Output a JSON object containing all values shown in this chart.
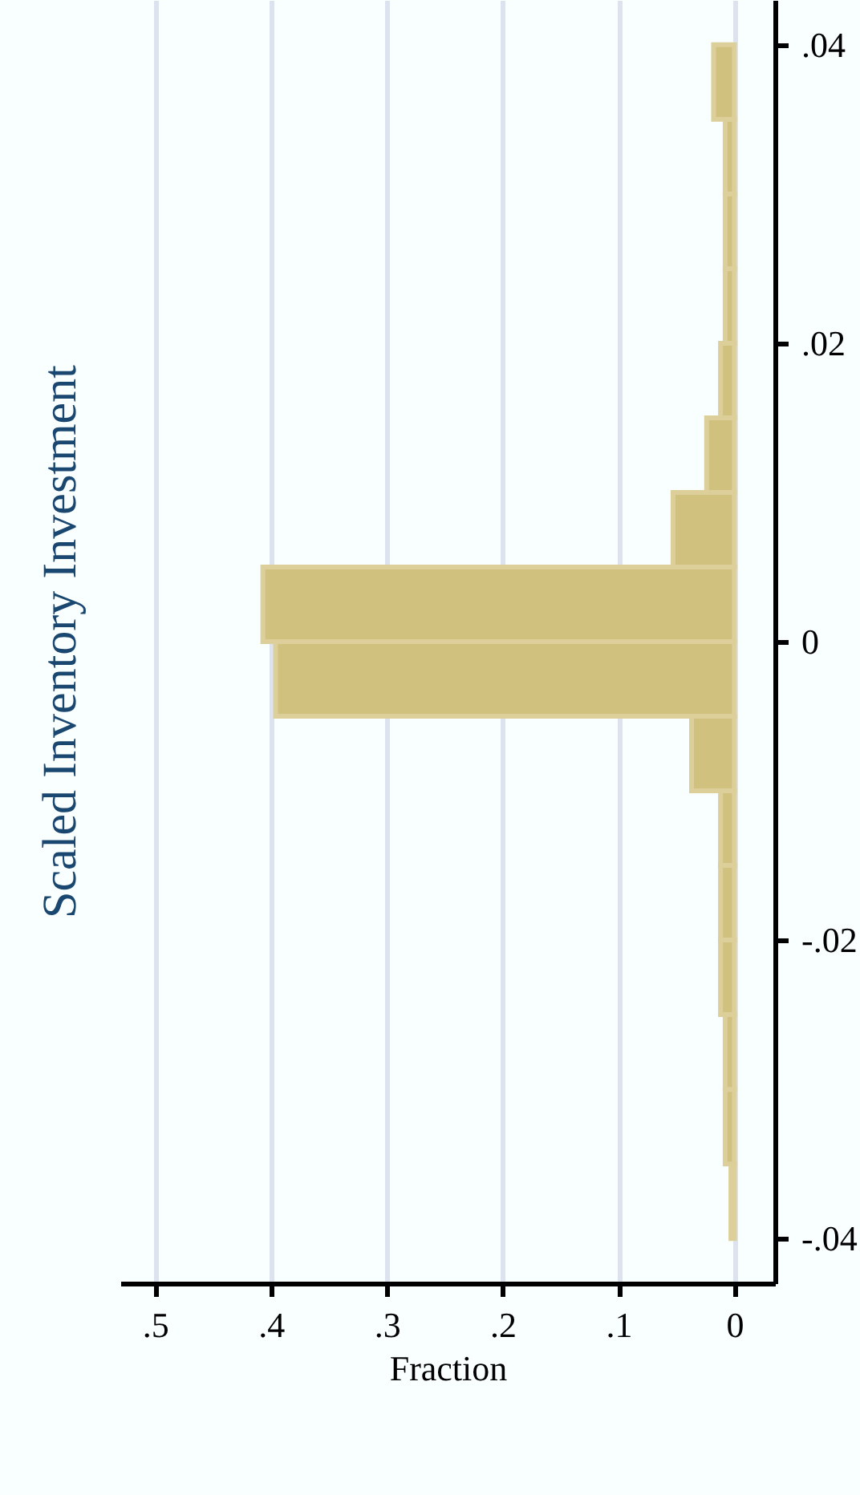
{
  "chart_data": {
    "type": "histogram",
    "title": "Scaled Inventory Investment",
    "xlabel": "Fraction",
    "orientation": "horizontal",
    "bins": [
      -0.04,
      -0.035,
      -0.03,
      -0.025,
      -0.02,
      -0.015,
      -0.01,
      -0.005,
      0,
      0.005,
      0.01,
      0.015,
      0.02,
      0.025,
      0.03,
      0.035,
      0.04
    ],
    "values": [
      0.003,
      0.008,
      0.008,
      0.012,
      0.012,
      0.012,
      0.037,
      0.396,
      0.407,
      0.053,
      0.024,
      0.012,
      0.008,
      0.008,
      0.008,
      0.018
    ],
    "color": "#d1c17e",
    "xlim": [
      0.53,
      -0.035
    ],
    "xticks": [
      0,
      {
        "value": 0.1,
        "label": ".1"
      },
      {
        "value": 0.2,
        "label": ".2"
      },
      {
        "value": 0.3,
        "label": ".3"
      },
      {
        "value": 0.4,
        "label": ".4"
      },
      {
        "value": 0.5,
        "label": ".5"
      }
    ],
    "ylim": [
      -0.043,
      0.043
    ],
    "yticks": [
      {
        "value": -0.04,
        "label": "-.04"
      },
      {
        "value": -0.02,
        "label": "-.02"
      },
      0,
      {
        "value": 0.02,
        "label": ".02"
      },
      {
        "value": 0.04,
        "label": ".04"
      }
    ],
    "grid": "x"
  }
}
